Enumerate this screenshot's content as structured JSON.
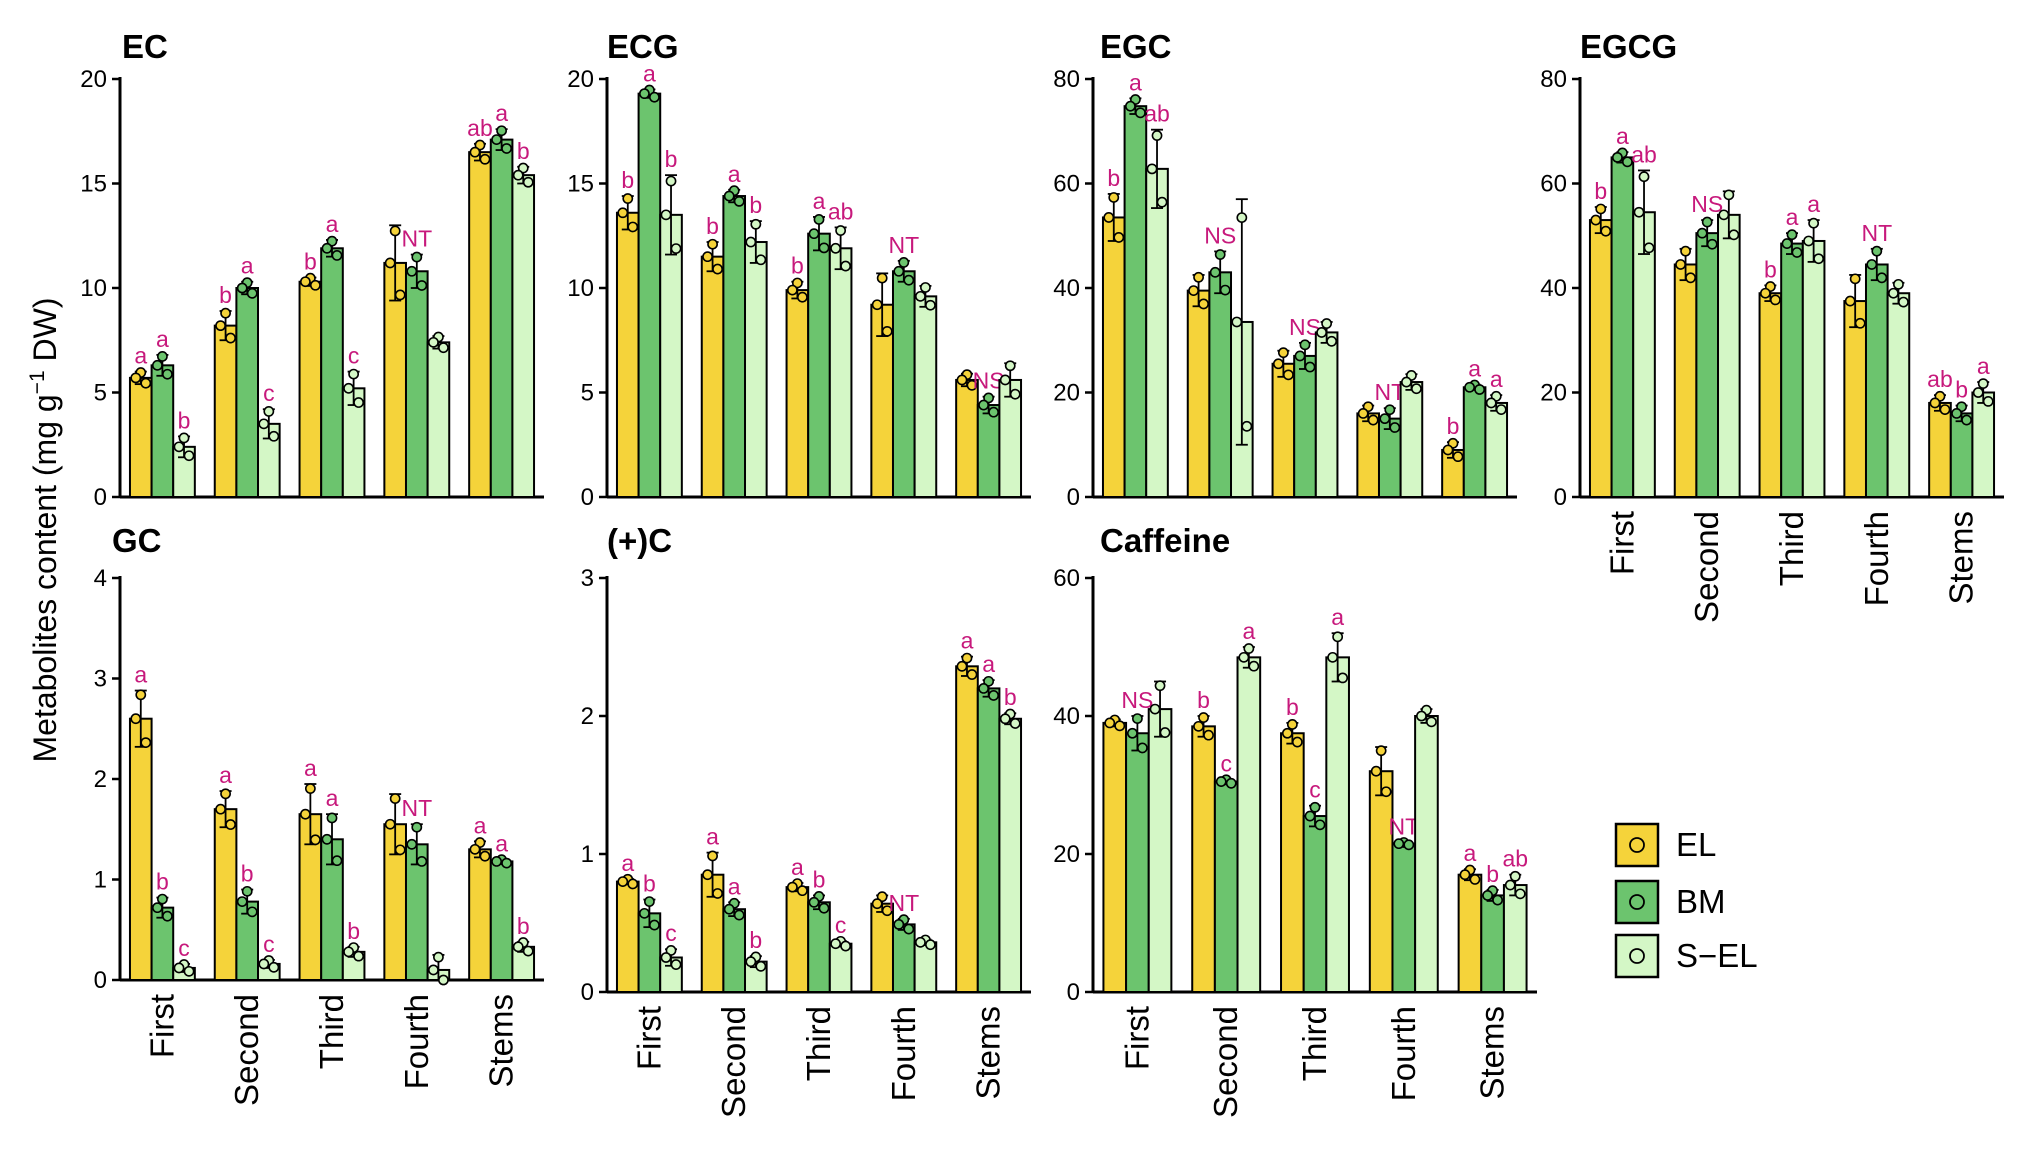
{
  "figure": {
    "ylabel_main": "Metabolites content (mg g",
    "ylabel_sup": "−1",
    "ylabel_tail": " DW)"
  },
  "colors": {
    "EL": "#f5d33a",
    "BM": "#6cc46e",
    "S-EL": "#d4f7c6",
    "sig": "#c7197c"
  },
  "legend": [
    {
      "label": "EL",
      "color": "#f5d33a"
    },
    {
      "label": "BM",
      "color": "#6cc46e"
    },
    {
      "label": "S−EL",
      "color": "#d4f7c6"
    }
  ],
  "chart_data": [
    {
      "title": "EC",
      "type": "bar",
      "categories": [
        "First",
        "Second",
        "Third",
        "Fourth",
        "Stems"
      ],
      "series_names": [
        "EL",
        "BM",
        "S-EL"
      ],
      "ylim": [
        0,
        20
      ],
      "yticks": [
        "0",
        "5",
        "10",
        "15",
        "20"
      ],
      "values": [
        [
          5.7,
          6.3,
          2.4
        ],
        [
          8.2,
          10.0,
          3.5
        ],
        [
          10.3,
          11.9,
          5.2
        ],
        [
          11.2,
          10.8,
          7.4
        ],
        [
          16.5,
          17.1,
          15.4
        ]
      ],
      "errors": [
        [
          0.3,
          0.5,
          0.5
        ],
        [
          0.7,
          0.3,
          0.7
        ],
        [
          0.2,
          0.4,
          0.8
        ],
        [
          1.8,
          0.8,
          0.3
        ],
        [
          0.4,
          0.5,
          0.4
        ]
      ],
      "letters": [
        [
          "a",
          "a",
          "b"
        ],
        [
          "b",
          "a",
          "c"
        ],
        [
          "b",
          "a",
          "c"
        ],
        [
          "",
          "NT",
          ""
        ],
        [
          "ab",
          "a",
          "b"
        ]
      ],
      "show_category_labels": false
    },
    {
      "title": "ECG",
      "type": "bar",
      "categories": [
        "First",
        "Second",
        "Third",
        "Fourth",
        "Stems"
      ],
      "series_names": [
        "EL",
        "BM",
        "S-EL"
      ],
      "ylim": [
        0,
        20
      ],
      "yticks": [
        "0",
        "5",
        "10",
        "15",
        "20"
      ],
      "values": [
        [
          13.6,
          19.3,
          13.5
        ],
        [
          11.5,
          14.4,
          12.2
        ],
        [
          9.9,
          12.6,
          11.9
        ],
        [
          9.2,
          10.8,
          9.6
        ],
        [
          5.6,
          4.4,
          5.6
        ]
      ],
      "errors": [
        [
          0.8,
          0.2,
          1.9
        ],
        [
          0.7,
          0.3,
          1.0
        ],
        [
          0.4,
          0.8,
          1.0
        ],
        [
          1.5,
          0.5,
          0.5
        ],
        [
          0.3,
          0.4,
          0.8
        ]
      ],
      "letters": [
        [
          "b",
          "a",
          "b"
        ],
        [
          "b",
          "a",
          "b"
        ],
        [
          "b",
          "a",
          "ab"
        ],
        [
          "",
          "NT",
          ""
        ],
        [
          "",
          "NS",
          ""
        ]
      ],
      "show_category_labels": false
    },
    {
      "title": "EGC",
      "type": "bar",
      "categories": [
        "First",
        "Second",
        "Third",
        "Fourth",
        "Stems"
      ],
      "series_names": [
        "EL",
        "BM",
        "S-EL"
      ],
      "ylim": [
        0,
        80
      ],
      "yticks": [
        "0",
        "20",
        "40",
        "60",
        "80"
      ],
      "values": [
        [
          53.5,
          74.8,
          62.8
        ],
        [
          39.5,
          43.0,
          33.5
        ],
        [
          25.5,
          27.0,
          31.5
        ],
        [
          16.0,
          15.0,
          22.0
        ],
        [
          9.0,
          21.0,
          18.0
        ]
      ],
      "errors": [
        [
          4.5,
          1.5,
          7.5
        ],
        [
          3.0,
          4.0,
          23.5
        ],
        [
          2.5,
          2.5,
          2.0
        ],
        [
          1.5,
          2.0,
          1.5
        ],
        [
          1.5,
          0.5,
          1.5
        ]
      ],
      "letters": [
        [
          "b",
          "a",
          "ab"
        ],
        [
          "",
          "NS",
          ""
        ],
        [
          "",
          "NS",
          ""
        ],
        [
          "",
          "NT",
          ""
        ],
        [
          "b",
          "a",
          "a"
        ]
      ],
      "show_category_labels": false
    },
    {
      "title": "EGCG",
      "type": "bar",
      "categories": [
        "First",
        "Second",
        "Third",
        "Fourth",
        "Stems"
      ],
      "series_names": [
        "EL",
        "BM",
        "S-EL"
      ],
      "ylim": [
        0,
        80
      ],
      "yticks": [
        "0",
        "20",
        "40",
        "60",
        "80"
      ],
      "values": [
        [
          53.0,
          65.0,
          54.5
        ],
        [
          44.5,
          50.5,
          54.0
        ],
        [
          39.0,
          48.5,
          49.0
        ],
        [
          37.5,
          44.5,
          39.0
        ],
        [
          18.0,
          16.0,
          20.0
        ]
      ],
      "errors": [
        [
          2.5,
          1.0,
          8.0
        ],
        [
          3.0,
          2.5,
          4.5
        ],
        [
          1.5,
          2.0,
          4.0
        ],
        [
          5.0,
          3.0,
          2.0
        ],
        [
          1.5,
          1.5,
          2.0
        ]
      ],
      "letters": [
        [
          "b",
          "a",
          "ab"
        ],
        [
          "",
          "NS",
          ""
        ],
        [
          "b",
          "a",
          "a"
        ],
        [
          "",
          "NT",
          ""
        ],
        [
          "ab",
          "b",
          "a"
        ]
      ],
      "show_category_labels": true
    },
    {
      "title": "GC",
      "type": "bar",
      "categories": [
        "First",
        "Second",
        "Third",
        "Fourth",
        "Stems"
      ],
      "series_names": [
        "EL",
        "BM",
        "S-EL"
      ],
      "ylim": [
        0,
        4
      ],
      "yticks": [
        "0",
        "1",
        "2",
        "3",
        "4"
      ],
      "values": [
        [
          2.6,
          0.72,
          0.12
        ],
        [
          1.7,
          0.78,
          0.16
        ],
        [
          1.65,
          1.4,
          0.28
        ],
        [
          1.55,
          1.35,
          0.1
        ],
        [
          1.3,
          1.18,
          0.33
        ]
      ],
      "errors": [
        [
          0.28,
          0.1,
          0.04
        ],
        [
          0.18,
          0.12,
          0.04
        ],
        [
          0.3,
          0.25,
          0.05
        ],
        [
          0.3,
          0.2,
          0.15
        ],
        [
          0.08,
          0.02,
          0.05
        ]
      ],
      "letters": [
        [
          "a",
          "b",
          "c"
        ],
        [
          "a",
          "b",
          "c"
        ],
        [
          "a",
          "a",
          "b"
        ],
        [
          "",
          "NT",
          ""
        ],
        [
          "a",
          "a",
          "b"
        ]
      ],
      "show_category_labels": true
    },
    {
      "title": "(+)C",
      "type": "bar",
      "categories": [
        "First",
        "Second",
        "Third",
        "Fourth",
        "Stems"
      ],
      "series_names": [
        "EL",
        "BM",
        "S-EL"
      ],
      "ylim": [
        0,
        3
      ],
      "yticks": [
        "0",
        "1",
        "2",
        "3"
      ],
      "values": [
        [
          0.8,
          0.57,
          0.25
        ],
        [
          0.85,
          0.6,
          0.22
        ],
        [
          0.76,
          0.65,
          0.35
        ],
        [
          0.64,
          0.49,
          0.36
        ],
        [
          2.36,
          2.2,
          1.98
        ]
      ],
      "errors": [
        [
          0.02,
          0.1,
          0.06
        ],
        [
          0.16,
          0.05,
          0.04
        ],
        [
          0.03,
          0.05,
          0.02
        ],
        [
          0.06,
          0.04,
          0.02
        ],
        [
          0.07,
          0.06,
          0.04
        ]
      ],
      "letters": [
        [
          "a",
          "b",
          "c"
        ],
        [
          "a",
          "a",
          "b"
        ],
        [
          "a",
          "b",
          "c"
        ],
        [
          "",
          "NT",
          ""
        ],
        [
          "a",
          "a",
          "b"
        ]
      ],
      "show_category_labels": true
    },
    {
      "title": "Caffeine",
      "type": "bar",
      "categories": [
        "First",
        "Second",
        "Third",
        "Fourth",
        "Stems"
      ],
      "series_names": [
        "EL",
        "BM",
        "S-EL"
      ],
      "ylim": [
        0,
        60
      ],
      "yticks": [
        "0",
        "20",
        "40",
        "60"
      ],
      "values": [
        [
          39.0,
          37.5,
          41.0
        ],
        [
          38.5,
          30.5,
          48.5
        ],
        [
          37.5,
          25.5,
          48.5
        ],
        [
          32.0,
          21.5,
          40.0
        ],
        [
          17.0,
          14.0,
          15.5
        ]
      ],
      "errors": [
        [
          0.5,
          2.5,
          4.0
        ],
        [
          1.5,
          0.3,
          1.5
        ],
        [
          1.5,
          1.5,
          3.5
        ],
        [
          3.5,
          0.2,
          1.0
        ],
        [
          0.8,
          0.8,
          1.5
        ]
      ],
      "letters": [
        [
          "",
          "NS",
          ""
        ],
        [
          "b",
          "c",
          "a"
        ],
        [
          "b",
          "c",
          "a"
        ],
        [
          "",
          "NT",
          ""
        ],
        [
          "a",
          "b",
          "ab"
        ]
      ],
      "show_category_labels": true
    }
  ]
}
